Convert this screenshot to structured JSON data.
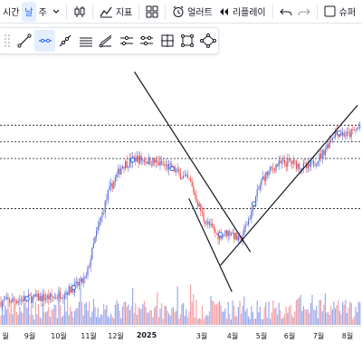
{
  "toolbar": {
    "interval_label": "시간",
    "day_label": "날",
    "week_label": "주",
    "indicators_label": "지표",
    "templates_label": "",
    "alert_label": "얼러트",
    "replay_label": "리플레이",
    "supercharts_label": "슈퍼",
    "icons": [
      "candles-icon",
      "indicators-icon",
      "templates-icon",
      "alert-clock-icon",
      "replay-icon",
      "undo-icon",
      "redo-icon",
      "layout-icon"
    ]
  },
  "drawing_tools": {
    "icons": [
      "trend-line-icon",
      "ray-icon",
      "info-line-icon",
      "extended-line-icon",
      "trend-angle-icon",
      "horizontal-line-icon",
      "horizontal-ray-icon",
      "cross-line-icon",
      "rectangle-icon",
      "rotated-shape-icon"
    ],
    "active_index": 1
  },
  "chart": {
    "colors": {
      "up": "#5b6fd8",
      "down": "#ef5350",
      "up_light": "#9aa8ec",
      "down_light": "#f5a3a8",
      "line": "#131722",
      "marker": "#2962ff"
    },
    "h_levels": [
      345,
      420,
      445,
      470
    ],
    "trend_lines": [
      {
        "from": [
          "2024-12-20",
          550
        ],
        "to": [
          "2025-05-01",
          280
        ]
      },
      {
        "from": [
          "2025-03-28",
          260
        ],
        "to": [
          "2025-08-31",
          500
        ]
      },
      {
        "from": [
          "2025-02-20",
          360
        ],
        "to": [
          "2025-04-10",
          220
        ]
      }
    ],
    "markers": [
      "2024-06-15",
      "2024-08-20",
      "2024-10-12",
      "2024-12-18",
      "2025-02-01",
      "2025-03-28",
      "2025-05-05",
      "2025-08-10"
    ]
  },
  "time_axis": {
    "labels": [
      "월",
      "9월",
      "10월",
      "11월",
      "12월",
      "2025",
      "3월",
      "4월",
      "5월",
      "6월",
      "7월",
      "8월"
    ]
  }
}
